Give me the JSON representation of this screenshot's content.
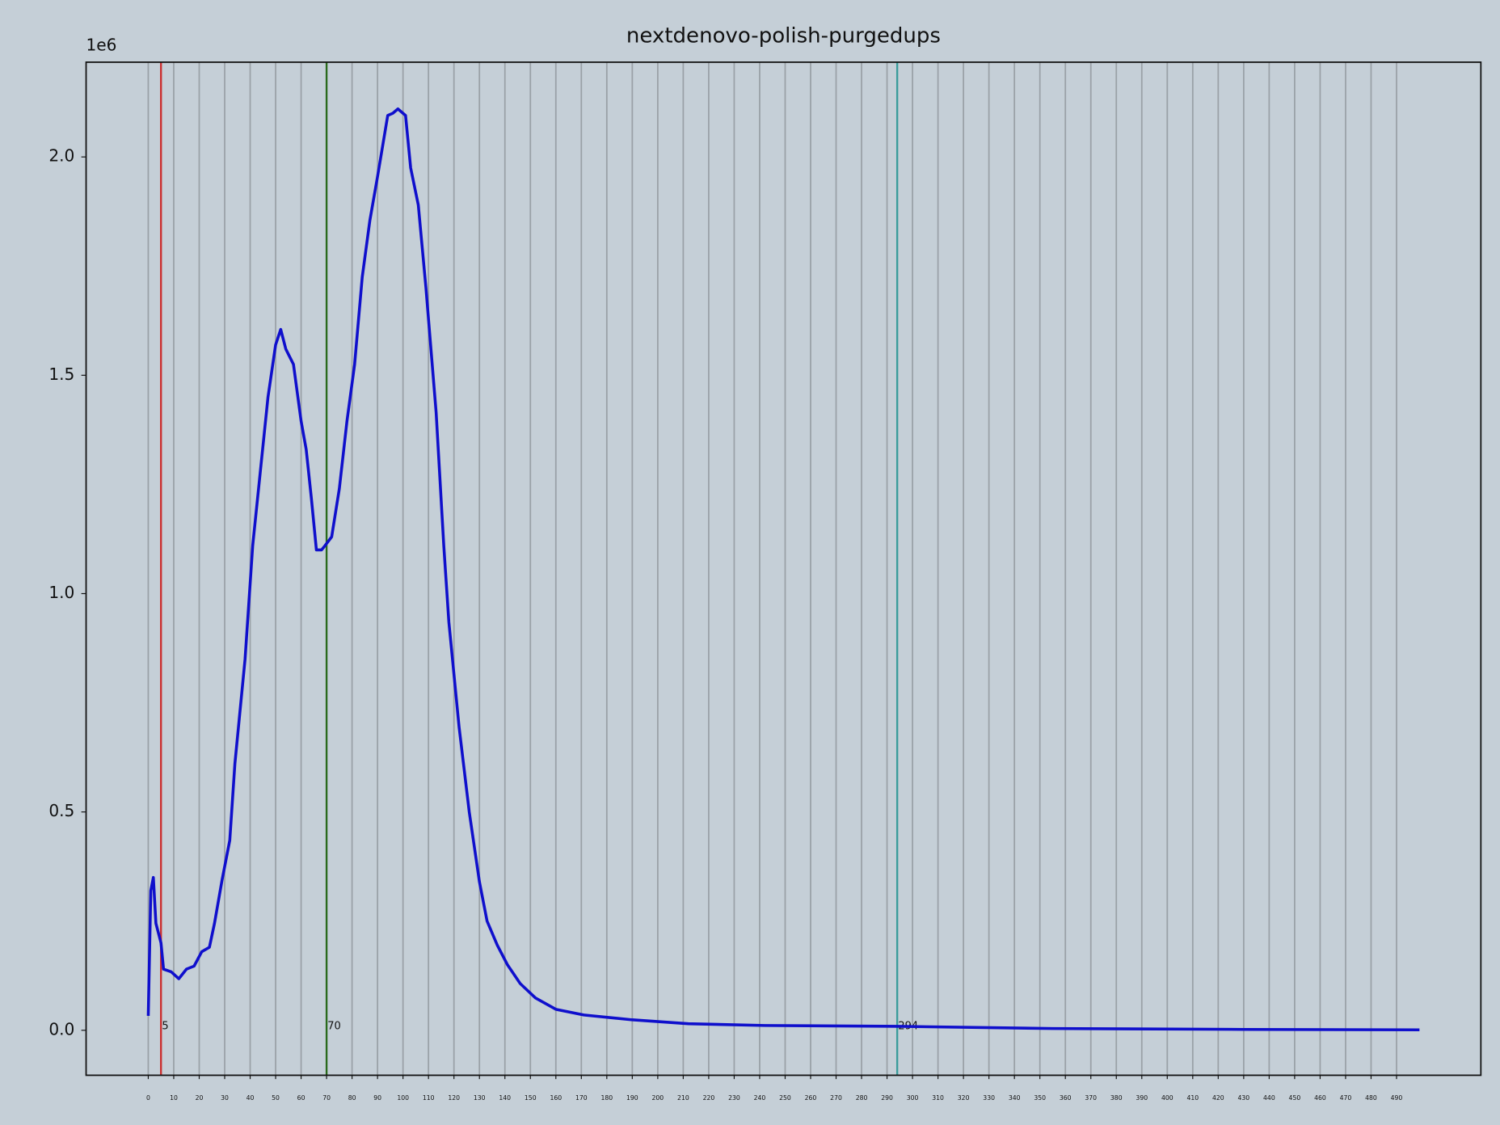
{
  "chart_data": {
    "type": "line",
    "title": "nextdenovo-polish-purgedups",
    "y_offset_label": "1e6",
    "color": "#0f0fcc",
    "x": [
      0,
      1,
      2,
      3,
      5,
      6,
      9,
      12,
      15,
      18,
      21,
      24,
      26,
      29,
      32,
      34,
      38,
      41,
      44,
      47,
      50,
      52,
      54,
      57,
      60,
      62,
      64,
      66,
      68,
      69,
      72,
      75,
      78,
      81,
      84,
      87,
      90,
      94,
      96,
      98,
      101,
      103,
      106,
      109,
      113,
      116,
      118,
      122,
      126,
      130,
      133,
      137,
      141,
      146,
      152,
      160,
      171,
      190,
      212,
      242,
      295,
      355,
      430,
      499
    ],
    "values": [
      0.033,
      0.32,
      0.35,
      0.245,
      0.2,
      0.14,
      0.134,
      0.118,
      0.14,
      0.147,
      0.18,
      0.19,
      0.245,
      0.345,
      0.435,
      0.61,
      0.85,
      1.11,
      1.28,
      1.45,
      1.57,
      1.605,
      1.56,
      1.525,
      1.395,
      1.33,
      1.22,
      1.1,
      1.1,
      1.107,
      1.13,
      1.24,
      1.395,
      1.525,
      1.725,
      1.855,
      1.955,
      2.095,
      2.1,
      2.11,
      2.095,
      1.975,
      1.89,
      1.7,
      1.415,
      1.11,
      0.935,
      0.695,
      0.5,
      0.34,
      0.25,
      0.195,
      0.15,
      0.107,
      0.074,
      0.048,
      0.035,
      0.024,
      0.015,
      0.011,
      0.009,
      0.004,
      0.002,
      0.001
    ],
    "vlines": [
      {
        "x": 5,
        "color": "#cc2f2f"
      },
      {
        "x": 70,
        "color": "#2a6a1c"
      },
      {
        "x": 294,
        "color": "#3a9c9c"
      }
    ],
    "xlim": [
      -24.4,
      523.1
    ],
    "ylim": [
      -0.103,
      2.217
    ],
    "xticks": [
      0,
      10,
      20,
      30,
      40,
      50,
      60,
      70,
      80,
      90,
      100,
      110,
      120,
      130,
      140,
      150,
      160,
      170,
      180,
      190,
      200,
      210,
      220,
      230,
      240,
      250,
      260,
      270,
      280,
      290,
      300,
      310,
      320,
      330,
      340,
      350,
      360,
      370,
      380,
      390,
      400,
      410,
      420,
      430,
      440,
      450,
      460,
      470,
      480,
      490
    ],
    "yticks": [
      {
        "value": 0,
        "label": "0.0"
      },
      0.5,
      {
        "value": 1,
        "label": "1.0"
      },
      1.5,
      {
        "value": 2,
        "label": "2.0"
      }
    ],
    "grid": "x"
  }
}
